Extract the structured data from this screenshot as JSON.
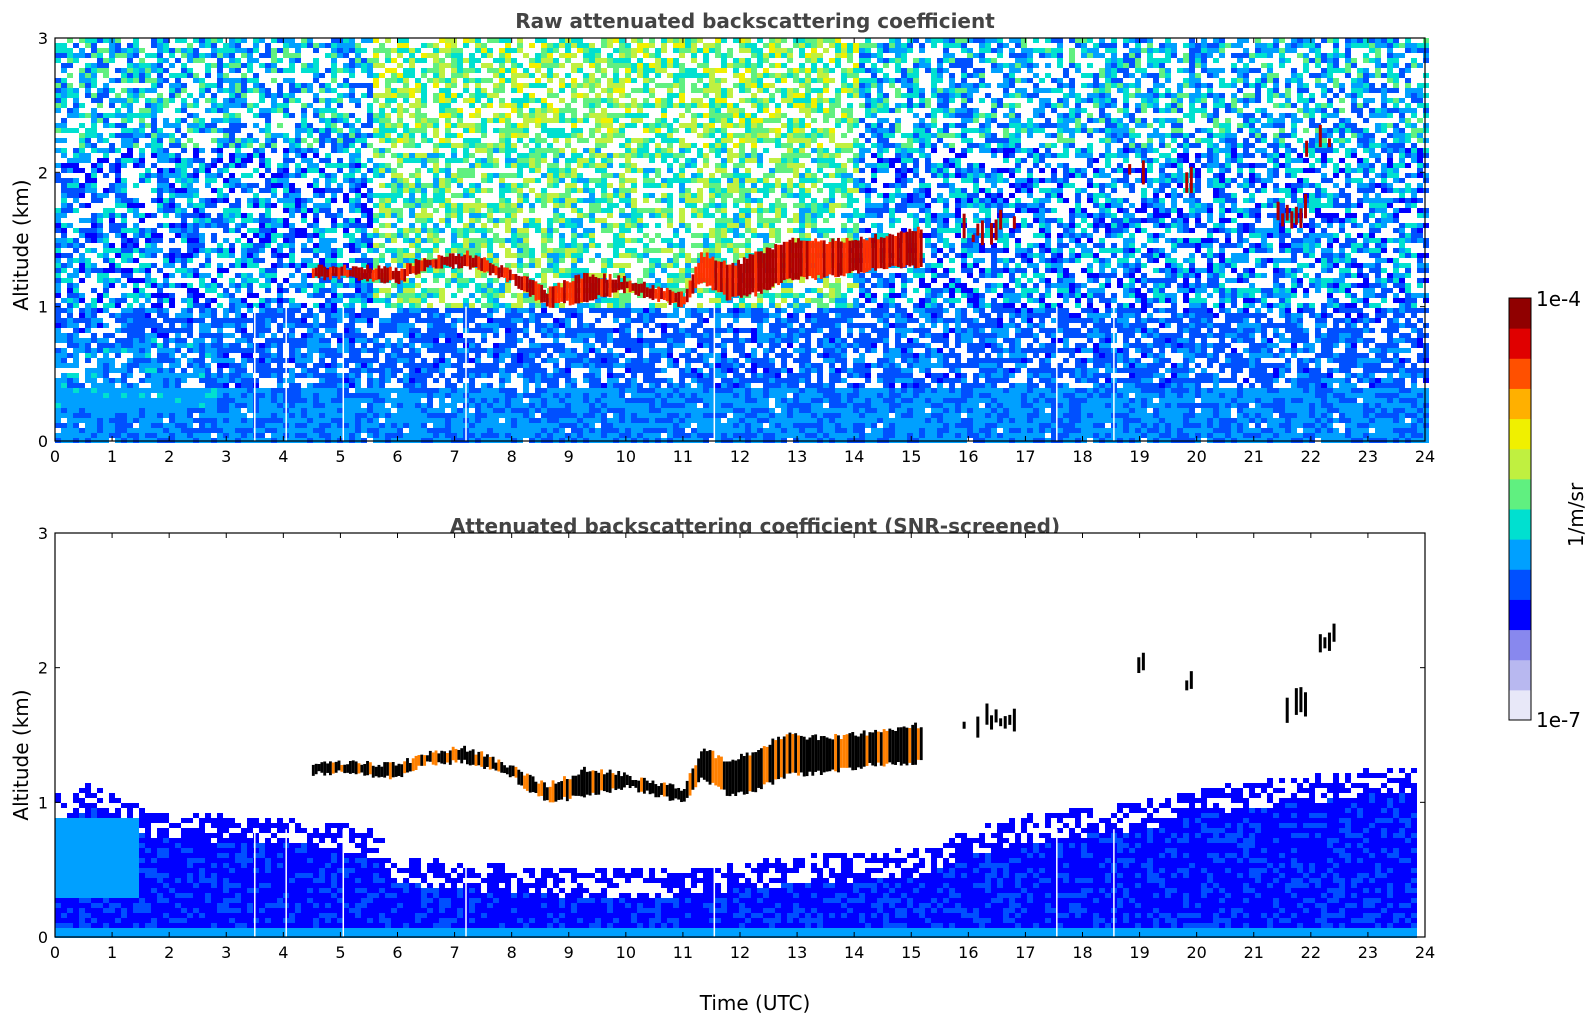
{
  "chart_data": [
    {
      "type": "heatmap",
      "title": "Raw attenuated backscattering coefficient",
      "xlabel": "",
      "ylabel": "Altitude (km)",
      "xlim": [
        0,
        24
      ],
      "ylim": [
        0,
        3
      ],
      "x_ticks": [
        "0",
        "1",
        "2",
        "3",
        "4",
        "5",
        "6",
        "7",
        "8",
        "9",
        "10",
        "11",
        "12",
        "13",
        "14",
        "15",
        "16",
        "17",
        "18",
        "19",
        "20",
        "21",
        "22",
        "23",
        "24"
      ],
      "y_ticks": [
        "0",
        "1",
        "2",
        "3"
      ],
      "data_gaps_time": [
        3.5,
        4.05,
        5.05,
        7.2,
        11.55,
        17.55,
        18.55
      ],
      "cloud_layer": {
        "time": [
          4.5,
          5.0,
          6.0,
          6.5,
          7.2,
          8.0,
          8.6,
          9.3,
          10.0,
          10.5,
          11.0,
          11.3,
          11.8,
          12.3,
          12.8,
          13.5,
          14.3,
          15.2
        ],
        "base_altitude": [
          1.21,
          1.22,
          1.18,
          1.29,
          1.3,
          1.18,
          1.0,
          1.05,
          1.12,
          1.05,
          1.0,
          1.18,
          1.05,
          1.1,
          1.2,
          1.22,
          1.28,
          1.3
        ],
        "top_altitude": [
          1.29,
          1.3,
          1.28,
          1.37,
          1.4,
          1.26,
          1.12,
          1.25,
          1.2,
          1.15,
          1.1,
          1.4,
          1.3,
          1.4,
          1.5,
          1.48,
          1.52,
          1.58
        ]
      },
      "upper_clouds": [
        {
          "time": [
            15.9,
            17.0
          ],
          "altitude": [
            1.45,
            1.75
          ]
        },
        {
          "time": [
            18.8,
            19.1
          ],
          "altitude": [
            1.9,
            2.1
          ]
        },
        {
          "time": [
            19.8,
            19.9
          ],
          "altitude": [
            1.8,
            1.9
          ]
        },
        {
          "time": [
            21.4,
            21.9
          ],
          "altitude": [
            1.55,
            1.8
          ]
        },
        {
          "time": [
            21.9,
            22.4
          ],
          "altitude": [
            2.1,
            2.3
          ]
        }
      ]
    },
    {
      "type": "heatmap",
      "title": "Attenuated backscattering coefficient (SNR-screened)",
      "xlabel": "Time (UTC)",
      "ylabel": "Altitude (km)",
      "xlim": [
        0,
        24
      ],
      "ylim": [
        0,
        3
      ],
      "x_ticks": [
        "0",
        "1",
        "2",
        "3",
        "4",
        "5",
        "6",
        "7",
        "8",
        "9",
        "10",
        "11",
        "12",
        "13",
        "14",
        "15",
        "16",
        "17",
        "18",
        "19",
        "20",
        "21",
        "22",
        "23",
        "24"
      ],
      "y_ticks": [
        "0",
        "1",
        "2",
        "3"
      ],
      "boundary_layer_top": {
        "time": [
          0,
          0.6,
          1.5,
          3,
          4.3,
          5.5,
          6,
          7,
          8,
          9,
          10,
          11,
          12,
          13,
          14,
          15,
          16,
          17,
          18,
          19,
          20,
          21,
          22,
          23,
          23.8
        ],
        "altitude": [
          0.95,
          1.05,
          0.85,
          0.8,
          0.8,
          0.7,
          0.5,
          0.45,
          0.43,
          0.4,
          0.4,
          0.4,
          0.45,
          0.5,
          0.52,
          0.55,
          0.7,
          0.8,
          0.85,
          0.9,
          1.0,
          1.05,
          1.1,
          1.15,
          1.15
        ]
      }
    }
  ],
  "colorbar": {
    "label": "1/m/sr",
    "max_label": "1e-4",
    "min_label": "1e-7",
    "colors": [
      "#e8e8f8",
      "#b8b8f0",
      "#8888ee",
      "#0000ff",
      "#0050ff",
      "#00a0ff",
      "#00e0d0",
      "#60f080",
      "#c0f040",
      "#f0f000",
      "#ffb000",
      "#ff5000",
      "#e00000",
      "#900000"
    ]
  }
}
